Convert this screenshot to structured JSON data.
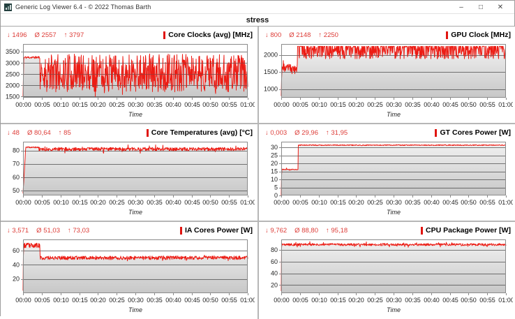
{
  "window": {
    "title": "Generic Log Viewer 6.4 - © 2022 Thomas Barth",
    "controls": {
      "minimize": "–",
      "maximize": "□",
      "close": "✕"
    }
  },
  "page_title": "stress",
  "colors": {
    "series_red": "#ec1c14",
    "stats_red": "#dd3c37",
    "title_accent_red": "#e01510",
    "grid_line": "#979797",
    "plot_border": "#8a8a8a",
    "panel_divider": "#b6b6b6",
    "tick_text": "#222222"
  },
  "chart_data": [
    {
      "type": "line",
      "title": "Core Clocks (avg) [MHz]",
      "stats": {
        "min": "↓ 1496",
        "avg": "Ø 2557",
        "max": "↑ 3797"
      },
      "xlabel": "Time",
      "x_ticks": [
        "00:00",
        "00:05",
        "00:10",
        "00:15",
        "00:20",
        "00:25",
        "00:30",
        "00:35",
        "00:40",
        "00:45",
        "00:50",
        "00:55",
        "01:00"
      ],
      "x_range_minutes": [
        0,
        60
      ],
      "y_ticks": [
        1500,
        2000,
        2500,
        3000,
        3500
      ],
      "y_range": [
        1450,
        3850
      ],
      "clip": [
        1496,
        3797
      ],
      "seed": 11,
      "segments": [
        {
          "t0": 0,
          "t1": 0.2,
          "v0": 1496,
          "v1": 3250,
          "noise": 0
        },
        {
          "t0": 0.2,
          "t1": 4.5,
          "v0": 3250,
          "v1": 3250,
          "noise": 55
        },
        {
          "t0": 4.5,
          "t1": 60,
          "v0": 2560,
          "v1": 2560,
          "noise": 850,
          "spike_prob": 0.05,
          "spike_amp": 430
        }
      ]
    },
    {
      "type": "line",
      "title": "GPU Clock [MHz]",
      "stats": {
        "min": "↓ 800",
        "avg": "Ø 2148",
        "max": "↑ 2250"
      },
      "xlabel": "Time",
      "x_ticks": [
        "00:00",
        "00:05",
        "00:10",
        "00:15",
        "00:20",
        "00:25",
        "00:30",
        "00:35",
        "00:40",
        "00:45",
        "00:50",
        "00:55",
        "01:00"
      ],
      "x_range_minutes": [
        0,
        60
      ],
      "y_ticks": [
        1000,
        1500,
        2000
      ],
      "y_range": [
        750,
        2320
      ],
      "clip": [
        800,
        2250
      ],
      "seed": 23,
      "segments": [
        {
          "t0": 0,
          "t1": 0.15,
          "v0": 800,
          "v1": 1620,
          "noise": 0
        },
        {
          "t0": 0.15,
          "t1": 4.3,
          "v0": 1620,
          "v1": 1620,
          "noise": 120,
          "spike_prob": 0.05,
          "spike_amp": 330,
          "clip": [
            1450,
            2050
          ]
        },
        {
          "t0": 4.3,
          "t1": 60,
          "v0": 2200,
          "v1": 2200,
          "noise": 330,
          "clip": [
            1890,
            2250
          ]
        }
      ]
    },
    {
      "type": "line",
      "title": "Core Temperatures (avg) [°C]",
      "stats": {
        "min": "↓ 48",
        "avg": "Ø 80,64",
        "max": "↑ 85"
      },
      "xlabel": "Time",
      "x_ticks": [
        "00:00",
        "00:05",
        "00:10",
        "00:15",
        "00:20",
        "00:25",
        "00:30",
        "00:35",
        "00:40",
        "00:45",
        "00:50",
        "00:55",
        "01:00"
      ],
      "x_range_minutes": [
        0,
        60
      ],
      "y_ticks": [
        50,
        60,
        70,
        80
      ],
      "y_range": [
        46.5,
        86.5
      ],
      "clip": [
        48,
        85
      ],
      "seed": 37,
      "segments": [
        {
          "t0": 0,
          "t1": 0.7,
          "v0": 48,
          "v1": 81.5,
          "noise": 0.4
        },
        {
          "t0": 0.7,
          "t1": 4.2,
          "v0": 82.3,
          "v1": 82.3,
          "noise": 0.5
        },
        {
          "t0": 4.2,
          "t1": 60,
          "v0": 81,
          "v1": 81,
          "noise": 1.3,
          "spike_prob": 0.07,
          "spike_amp": 2.4,
          "clip": [
            77.5,
            85
          ]
        }
      ]
    },
    {
      "type": "line",
      "title": "GT Cores Power [W]",
      "stats": {
        "min": "↓ 0,003",
        "avg": "Ø 29,96",
        "max": "↑ 31,95"
      },
      "xlabel": "Time",
      "x_ticks": [
        "00:00",
        "00:05",
        "00:10",
        "00:15",
        "00:20",
        "00:25",
        "00:30",
        "00:35",
        "00:40",
        "00:45",
        "00:50",
        "00:55",
        "01:00"
      ],
      "x_range_minutes": [
        0,
        60
      ],
      "y_ticks": [
        0,
        5,
        10,
        15,
        20,
        25,
        30
      ],
      "y_range": [
        0,
        33.5
      ],
      "clip": [
        0.003,
        31.95
      ],
      "seed": 41,
      "segments": [
        {
          "t0": 0,
          "t1": 0.12,
          "v0": 0.003,
          "v1": 16.2,
          "noise": 0
        },
        {
          "t0": 0.12,
          "t1": 4.5,
          "v0": 16.2,
          "v1": 16.2,
          "noise": 0.25,
          "spike_prob": 0.1,
          "spike_amp": 1.4,
          "clip": [
            15.6,
            18
          ]
        },
        {
          "t0": 4.5,
          "t1": 60,
          "v0": 31.35,
          "v1": 31.35,
          "noise": 0.3,
          "clip": [
            30.6,
            31.95
          ]
        }
      ]
    },
    {
      "type": "line",
      "title": "IA Cores Power [W]",
      "stats": {
        "min": "↓ 3,571",
        "avg": "Ø 51,03",
        "max": "↑ 73,03"
      },
      "xlabel": "Time",
      "x_ticks": [
        "00:00",
        "00:05",
        "00:10",
        "00:15",
        "00:20",
        "00:25",
        "00:30",
        "00:35",
        "00:40",
        "00:45",
        "00:50",
        "00:55",
        "01:00"
      ],
      "x_range_minutes": [
        0,
        60
      ],
      "y_ticks": [
        20,
        40,
        60
      ],
      "y_range": [
        0,
        76
      ],
      "clip": [
        3.571,
        73.03
      ],
      "seed": 53,
      "segments": [
        {
          "t0": 0,
          "t1": 0.12,
          "v0": 3.571,
          "v1": 67,
          "noise": 0
        },
        {
          "t0": 0.12,
          "t1": 4.5,
          "v0": 67.5,
          "v1": 67.5,
          "noise": 3.5,
          "clip": [
            61,
            73.03
          ]
        },
        {
          "t0": 4.5,
          "t1": 60,
          "v0": 50,
          "v1": 50,
          "noise": 2.6,
          "spike_prob": 0.05,
          "spike_amp": 3.2,
          "clip": [
            43.5,
            58
          ]
        }
      ]
    },
    {
      "type": "line",
      "title": "CPU Package Power [W]",
      "stats": {
        "min": "↓ 9,762",
        "avg": "Ø 88,80",
        "max": "↑ 95,18"
      },
      "xlabel": "Time",
      "x_ticks": [
        "00:00",
        "00:05",
        "00:10",
        "00:15",
        "00:20",
        "00:25",
        "00:30",
        "00:35",
        "00:40",
        "00:45",
        "00:50",
        "00:55",
        "01:00"
      ],
      "x_range_minutes": [
        0,
        60
      ],
      "y_ticks": [
        20,
        40,
        60,
        80
      ],
      "y_range": [
        6,
        98
      ],
      "clip": [
        9.762,
        95.18
      ],
      "seed": 67,
      "segments": [
        {
          "t0": 0,
          "t1": 0.1,
          "v0": 9.762,
          "v1": 89,
          "noise": 0
        },
        {
          "t0": 0.1,
          "t1": 60,
          "v0": 89.2,
          "v1": 89.2,
          "noise": 2.0,
          "spike_prob": 0.06,
          "spike_amp": 3.6,
          "clip": [
            83,
            95.18
          ]
        }
      ]
    }
  ]
}
